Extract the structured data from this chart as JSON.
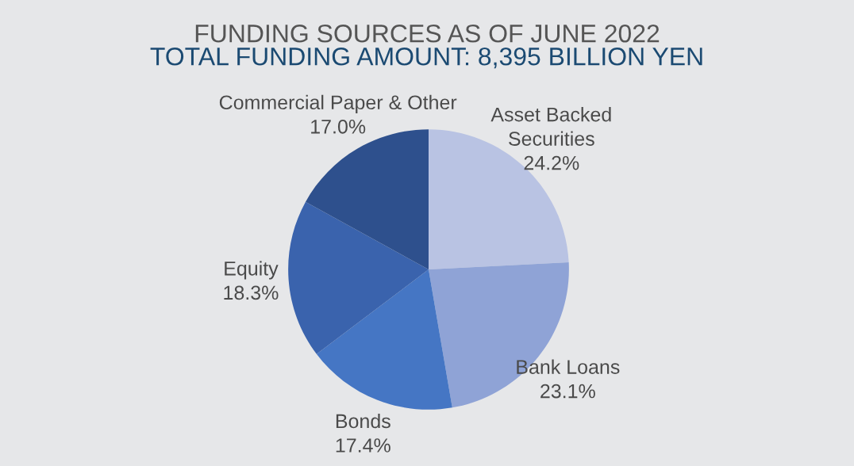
{
  "chart_data": {
    "type": "pie",
    "title": "FUNDING SOURCES AS OF JUNE 2022",
    "subtitle": "TOTAL FUNDING AMOUNT: 8,395 BILLION YEN",
    "categories": [
      "Asset Backed\nSecurities",
      "Bank Loans",
      "Bonds",
      "Equity",
      "Commercial Paper & Other"
    ],
    "values": [
      24.2,
      23.1,
      17.4,
      18.3,
      17.0
    ],
    "value_labels": [
      "24.2%",
      "23.1%",
      "17.4%",
      "18.3%",
      "17.0%"
    ],
    "colors": [
      "#b9c3e3",
      "#8fa3d6",
      "#4576c4",
      "#3a63ad",
      "#2e508d"
    ]
  }
}
